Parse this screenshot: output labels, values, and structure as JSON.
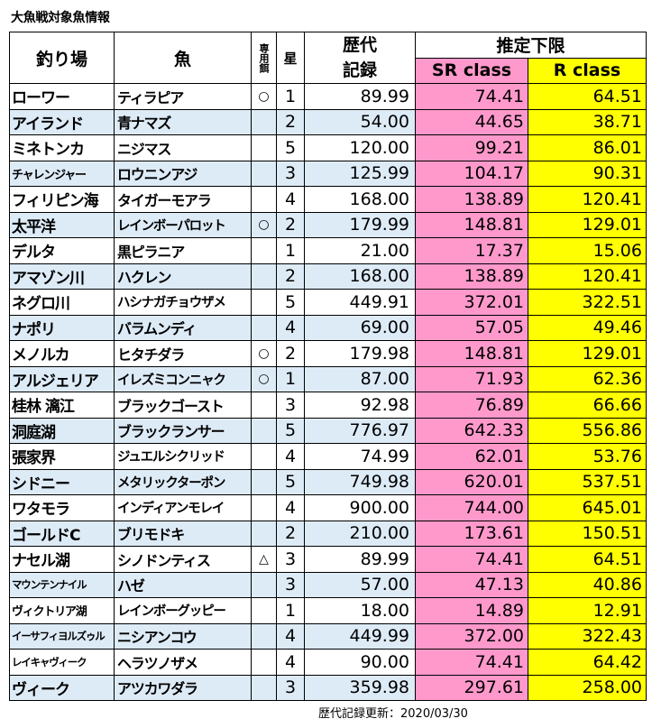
{
  "title": "大魚戦対象魚情報",
  "headers": {
    "place": "釣り場",
    "fish": "魚",
    "bait": "専用餌",
    "star": "星",
    "record": "歴代記録",
    "estimate": "推定下限",
    "sr": "SR class",
    "r": "R class"
  },
  "rows": [
    {
      "place": "ローワー",
      "fish": "ティラピア",
      "bait": "○",
      "star": "1",
      "record": "89.99",
      "sr": "74.41",
      "r": "64.51"
    },
    {
      "place": "アイランド",
      "fish": "青ナマズ",
      "bait": "",
      "star": "2",
      "record": "54.00",
      "sr": "44.65",
      "r": "38.71"
    },
    {
      "place": "ミネトンカ",
      "fish": "ニジマス",
      "bait": "",
      "star": "5",
      "record": "120.00",
      "sr": "99.21",
      "r": "86.01"
    },
    {
      "place": "チャレンジャー",
      "fish": "ロウニンアジ",
      "bait": "",
      "star": "3",
      "record": "125.99",
      "sr": "104.17",
      "r": "90.31"
    },
    {
      "place": "フィリピン海",
      "fish": "タイガーモアラ",
      "bait": "",
      "star": "4",
      "record": "168.00",
      "sr": "138.89",
      "r": "120.41"
    },
    {
      "place": "太平洋",
      "fish": "レインボーパロット",
      "bait": "○",
      "star": "2",
      "record": "179.99",
      "sr": "148.81",
      "r": "129.01"
    },
    {
      "place": "デルタ",
      "fish": "黒ピラニア",
      "bait": "",
      "star": "1",
      "record": "21.00",
      "sr": "17.37",
      "r": "15.06"
    },
    {
      "place": "アマゾン川",
      "fish": "ハクレン",
      "bait": "",
      "star": "2",
      "record": "168.00",
      "sr": "138.89",
      "r": "120.41"
    },
    {
      "place": "ネグロ川",
      "fish": "ハシナガチョウザメ",
      "bait": "",
      "star": "5",
      "record": "449.91",
      "sr": "372.01",
      "r": "322.51"
    },
    {
      "place": "ナポリ",
      "fish": "バラムンディ",
      "bait": "",
      "star": "4",
      "record": "69.00",
      "sr": "57.05",
      "r": "49.46"
    },
    {
      "place": "メノルカ",
      "fish": "ヒタチダラ",
      "bait": "○",
      "star": "2",
      "record": "179.98",
      "sr": "148.81",
      "r": "129.01"
    },
    {
      "place": "アルジェリア",
      "fish": "イレズミコンニャク",
      "bait": "○",
      "star": "1",
      "record": "87.00",
      "sr": "71.93",
      "r": "62.36"
    },
    {
      "place": "桂林 漓江",
      "fish": "ブラックゴースト",
      "bait": "",
      "star": "3",
      "record": "92.98",
      "sr": "76.89",
      "r": "66.66"
    },
    {
      "place": "洞庭湖",
      "fish": "ブラックランサー",
      "bait": "",
      "star": "5",
      "record": "776.97",
      "sr": "642.33",
      "r": "556.86"
    },
    {
      "place": "張家界",
      "fish": "ジュエルシクリッド",
      "bait": "",
      "star": "4",
      "record": "74.99",
      "sr": "62.01",
      "r": "53.76"
    },
    {
      "place": "シドニー",
      "fish": "メタリックターポン",
      "bait": "",
      "star": "5",
      "record": "749.98",
      "sr": "620.01",
      "r": "537.51"
    },
    {
      "place": "ワタモラ",
      "fish": "インディアンモレイ",
      "bait": "",
      "star": "4",
      "record": "900.00",
      "sr": "744.00",
      "r": "645.01"
    },
    {
      "place": "ゴールドC",
      "fish": "ブリモドキ",
      "bait": "",
      "star": "2",
      "record": "210.00",
      "sr": "173.61",
      "r": "150.51"
    },
    {
      "place": "ナセル湖",
      "fish": "シノドンティス",
      "bait": "△",
      "star": "3",
      "record": "89.99",
      "sr": "74.41",
      "r": "64.51"
    },
    {
      "place": "マウンテンナイル",
      "fish": "ハゼ",
      "bait": "",
      "star": "3",
      "record": "57.00",
      "sr": "47.13",
      "r": "40.86"
    },
    {
      "place": "ヴィクトリア湖",
      "fish": "レインボーグッピー",
      "bait": "",
      "star": "1",
      "record": "18.00",
      "sr": "14.89",
      "r": "12.91"
    },
    {
      "place": "イーサフィヨルズゥル",
      "fish": "ニシアンコウ",
      "bait": "",
      "star": "4",
      "record": "449.99",
      "sr": "372.00",
      "r": "322.43"
    },
    {
      "place": "レイキャヴィーク",
      "fish": "ヘラツノザメ",
      "bait": "",
      "star": "4",
      "record": "90.00",
      "sr": "74.41",
      "r": "64.42"
    },
    {
      "place": "ヴィーク",
      "fish": "アツカワダラ",
      "bait": "",
      "star": "3",
      "record": "359.98",
      "sr": "297.61",
      "r": "258.00"
    }
  ],
  "footer": "歴代記録更新：2020/03/30",
  "colors": {
    "sr": "#ff99cc",
    "r": "#ffff00",
    "alt_row": "#ddebf7"
  }
}
